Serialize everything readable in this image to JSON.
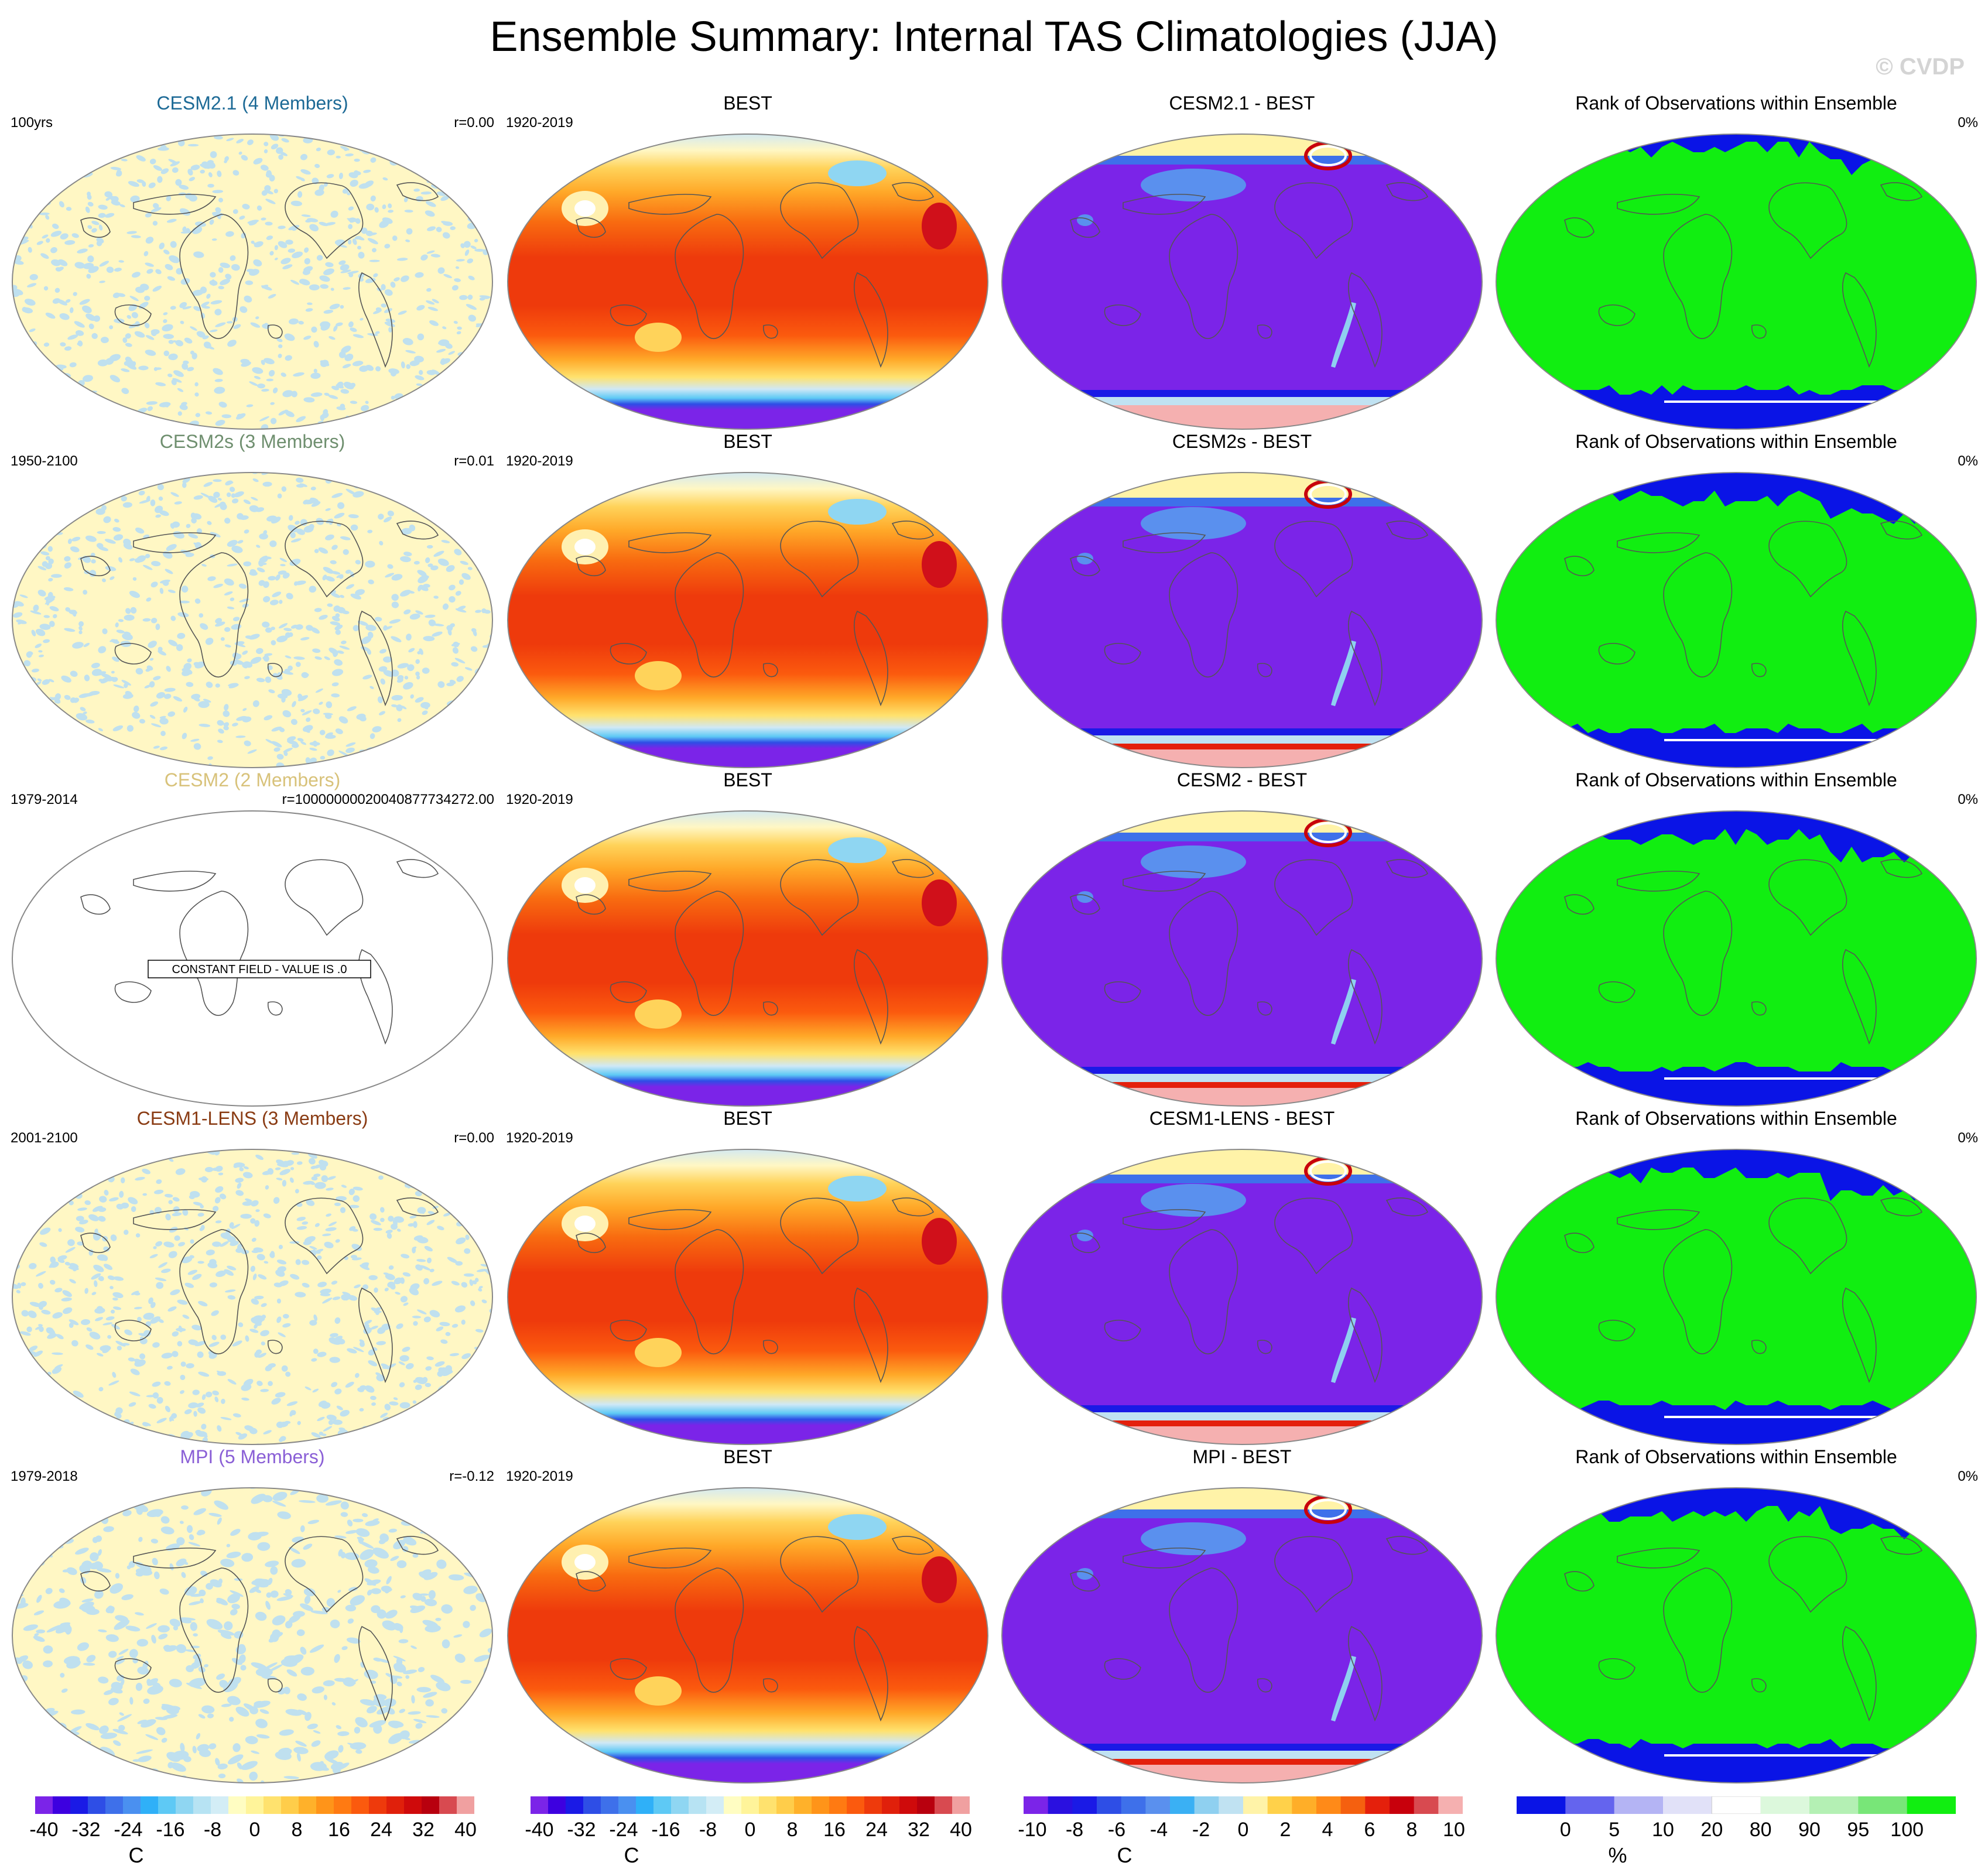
{
  "title": "Ensemble Summary: Internal TAS Climatologies (JJA)",
  "watermark": "© CVDP",
  "rows": [
    {
      "ens": {
        "title": "CESM2.1 (4 Members)",
        "title_color": "#1d6a96",
        "left": "100yrs",
        "right": "r=0.00",
        "style": "noise-a"
      },
      "obs": {
        "title": "BEST",
        "left": "1920-2019"
      },
      "diff": {
        "title": "CESM2.1 - BEST"
      },
      "rank": {
        "title": "Rank of Observations within Ensemble",
        "right": "0%",
        "style": "rank-1"
      }
    },
    {
      "ens": {
        "title": "CESM2s (3 Members)",
        "title_color": "#6f8f6f",
        "left": "1950-2100",
        "right": "r=0.01",
        "style": "noise-b"
      },
      "obs": {
        "title": "BEST",
        "left": "1920-2019"
      },
      "diff": {
        "title": "CESM2s - BEST"
      },
      "rank": {
        "title": "Rank of Observations within Ensemble",
        "right": "0%",
        "style": "rank-2"
      }
    },
    {
      "ens": {
        "title": "CESM2 (2 Members)",
        "title_color": "#d8c27a",
        "left": "1979-2014",
        "right": "r=10000000020040877734272.00",
        "style": "constant",
        "note": "CONSTANT FIELD - VALUE IS .0"
      },
      "obs": {
        "title": "BEST",
        "left": "1920-2019"
      },
      "diff": {
        "title": "CESM2 - BEST"
      },
      "rank": {
        "title": "Rank of Observations within Ensemble",
        "right": "0%",
        "style": "rank-2"
      }
    },
    {
      "ens": {
        "title": "CESM1-LENS (3 Members)",
        "title_color": "#8a3c14",
        "left": "2001-2100",
        "right": "r=0.00",
        "style": "noise-b"
      },
      "obs": {
        "title": "BEST",
        "left": "1920-2019"
      },
      "diff": {
        "title": "CESM1-LENS - BEST"
      },
      "rank": {
        "title": "Rank of Observations within Ensemble",
        "right": "0%",
        "style": "rank-2"
      }
    },
    {
      "ens": {
        "title": "MPI (5 Members)",
        "title_color": "#8a5fd6",
        "left": "1979-2018",
        "right": "r=-0.12",
        "style": "noise-c"
      },
      "obs": {
        "title": "BEST",
        "left": "1920-2019"
      },
      "diff": {
        "title": "MPI - BEST"
      },
      "rank": {
        "title": "Rank of Observations within Ensemble",
        "right": "0%",
        "style": "rank-2"
      }
    }
  ],
  "chart_data": {
    "type": "heatmap",
    "projection": "Robinson (global maps)",
    "colorbars": [
      {
        "id": "ens",
        "unit": "C",
        "ticks": [
          "-40",
          "-32",
          "-24",
          "-16",
          "-8",
          "0",
          "8",
          "16",
          "24",
          "32",
          "40"
        ],
        "colors": [
          "#7b24e8",
          "#3d00e0",
          "#1a1ae6",
          "#2e4ee6",
          "#3e70ea",
          "#4a90f0",
          "#2fb0f8",
          "#5ec9f5",
          "#8fd6f2",
          "#b7e3f3",
          "#d3edf6",
          "#fffdc2",
          "#fff49a",
          "#ffe26e",
          "#ffcd4a",
          "#ffb12a",
          "#ff9419",
          "#ff7a12",
          "#fb5a0e",
          "#ee3a0c",
          "#e0200b",
          "#cf0a0b",
          "#b8000e",
          "#d84a50",
          "#f0a0a0"
        ]
      },
      {
        "id": "obs",
        "unit": "C",
        "ticks": [
          "-40",
          "-32",
          "-24",
          "-16",
          "-8",
          "0",
          "8",
          "16",
          "24",
          "32",
          "40"
        ],
        "colors": [
          "#7b24e8",
          "#3d00e0",
          "#1a1ae6",
          "#2e4ee6",
          "#3e70ea",
          "#4a90f0",
          "#2fb0f8",
          "#5ec9f5",
          "#8fd6f2",
          "#b7e3f3",
          "#d3edf6",
          "#fffdc2",
          "#fff49a",
          "#ffe26e",
          "#ffcd4a",
          "#ffb12a",
          "#ff9419",
          "#ff7a12",
          "#fb5a0e",
          "#ee3a0c",
          "#e0200b",
          "#cf0a0b",
          "#b8000e",
          "#d84a50",
          "#f0a0a0"
        ]
      },
      {
        "id": "diff",
        "unit": "C",
        "ticks": [
          "-10",
          "-8",
          "-6",
          "-4",
          "-2",
          "0",
          "2",
          "4",
          "6",
          "8",
          "10"
        ],
        "colors": [
          "#7b24e8",
          "#2a10e0",
          "#1a1ae6",
          "#2e4ee6",
          "#3e70ea",
          "#5a90ee",
          "#3ab0f4",
          "#8fd0f0",
          "#c0e2f2",
          "#fff3a8",
          "#ffd14a",
          "#ffae28",
          "#ff8a18",
          "#f5600f",
          "#e4200c",
          "#c8000c",
          "#d84a50",
          "#f5b0b0"
        ]
      },
      {
        "id": "rank",
        "unit": "%",
        "ticks": [
          "0",
          "5",
          "10",
          "20",
          "80",
          "90",
          "95",
          "100"
        ],
        "colors": [
          "#0a14e6",
          "#6464ee",
          "#b4b4f4",
          "#e1e1f8",
          "#ffffff",
          "#dcf8dc",
          "#b4f0b4",
          "#78e678",
          "#11ee11"
        ]
      }
    ],
    "panels_per_row": [
      "ensemble spread",
      "observations (BEST)",
      "ensemble - BEST",
      "rank of observations"
    ]
  }
}
